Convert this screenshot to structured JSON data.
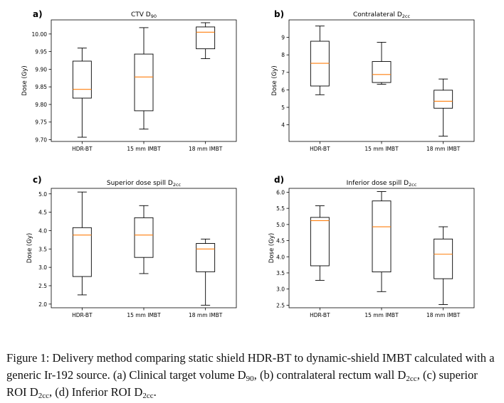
{
  "chart_data": [
    {
      "panel": "a)",
      "type": "boxplot",
      "title": "CTV D",
      "title_sub": "90",
      "ylabel": "Dose (Gy)",
      "ylim": [
        9.695,
        10.04
      ],
      "yticks": [
        9.7,
        9.75,
        9.8,
        9.85,
        9.9,
        9.95,
        10.0
      ],
      "ytick_labels": [
        "9.70",
        "9.75",
        "9.80",
        "9.85",
        "9.90",
        "9.95",
        "10.00"
      ],
      "categories": [
        "HDR-BT",
        "15 mm IMBT",
        "18 mm IMBT"
      ],
      "boxes": [
        {
          "whislo": 9.707,
          "q1": 9.818,
          "med": 9.843,
          "q3": 9.923,
          "whishi": 9.96
        },
        {
          "whislo": 9.73,
          "q1": 9.782,
          "med": 9.878,
          "q3": 9.943,
          "whishi": 10.018
        },
        {
          "whislo": 9.93,
          "q1": 9.958,
          "med": 10.005,
          "q3": 10.02,
          "whishi": 10.032
        }
      ]
    },
    {
      "panel": "b)",
      "type": "boxplot",
      "title": "Contralateral D",
      "title_sub": "2cc",
      "ylabel": "Dose (Gy)",
      "ylim": [
        3.05,
        10.0
      ],
      "yticks": [
        4,
        5,
        6,
        7,
        8,
        9
      ],
      "ytick_labels": [
        "4",
        "5",
        "6",
        "7",
        "8",
        "9"
      ],
      "categories": [
        "HDR-BT",
        "15 mm IMBT",
        "18 mm IMBT"
      ],
      "boxes": [
        {
          "whislo": 5.72,
          "q1": 6.22,
          "med": 7.52,
          "q3": 8.78,
          "whishi": 9.65
        },
        {
          "whislo": 6.32,
          "q1": 6.42,
          "med": 6.88,
          "q3": 7.62,
          "whishi": 8.72
        },
        {
          "whislo": 3.35,
          "q1": 4.95,
          "med": 5.35,
          "q3": 5.98,
          "whishi": 6.62
        }
      ]
    },
    {
      "panel": "c)",
      "type": "boxplot",
      "title": "Superior dose spill D",
      "title_sub": "2cc",
      "ylabel": "Dose (Gy)",
      "ylim": [
        1.9,
        5.15
      ],
      "yticks": [
        2.0,
        2.5,
        3.0,
        3.5,
        4.0,
        4.5,
        5.0
      ],
      "ytick_labels": [
        "2.0",
        "2.5",
        "3.0",
        "3.5",
        "4.0",
        "4.5",
        "5.0"
      ],
      "categories": [
        "HDR-BT",
        "15 mm IMBT",
        "18 mm IMBT"
      ],
      "boxes": [
        {
          "whislo": 2.25,
          "q1": 2.75,
          "med": 3.88,
          "q3": 4.08,
          "whishi": 5.05
        },
        {
          "whislo": 2.83,
          "q1": 3.27,
          "med": 3.88,
          "q3": 4.35,
          "whishi": 4.68
        },
        {
          "whislo": 1.97,
          "q1": 2.88,
          "med": 3.5,
          "q3": 3.65,
          "whishi": 3.77
        }
      ]
    },
    {
      "panel": "d)",
      "type": "boxplot",
      "title": "Inferior dose spill D",
      "title_sub": "2cc",
      "ylabel": "Dose (Gy)",
      "ylim": [
        2.42,
        6.12
      ],
      "yticks": [
        2.5,
        3.0,
        3.5,
        4.0,
        4.5,
        5.0,
        5.5,
        6.0
      ],
      "ytick_labels": [
        "2.5",
        "3.0",
        "3.5",
        "4.0",
        "4.5",
        "5.0",
        "5.5",
        "6.0"
      ],
      "categories": [
        "HDR-BT",
        "15 mm IMBT",
        "18 mm IMBT"
      ],
      "boxes": [
        {
          "whislo": 3.27,
          "q1": 3.72,
          "med": 5.12,
          "q3": 5.22,
          "whishi": 5.58
        },
        {
          "whislo": 2.92,
          "q1": 3.53,
          "med": 4.93,
          "q3": 5.73,
          "whishi": 6.02
        },
        {
          "whislo": 2.52,
          "q1": 3.32,
          "med": 4.08,
          "q3": 4.55,
          "whishi": 4.93
        }
      ]
    }
  ],
  "colors": {
    "box": "#000000",
    "median": "#ff7f0e",
    "axes": "#000000"
  },
  "caption": {
    "p1": "Figure 1: Delivery method comparing static shield HDR-BT to dynamic-shield IMBT calculated with a generic Ir-192 source. (a) Clinical target volume D",
    "s1": "90",
    "p2": ", (b) contralateral rectum wall D",
    "s2": "2cc",
    "p3": ", (c) superior ROI D",
    "s3": "2cc",
    "p4": ", (d) Inferior ROI D",
    "s4": "2cc",
    "p5": "."
  }
}
